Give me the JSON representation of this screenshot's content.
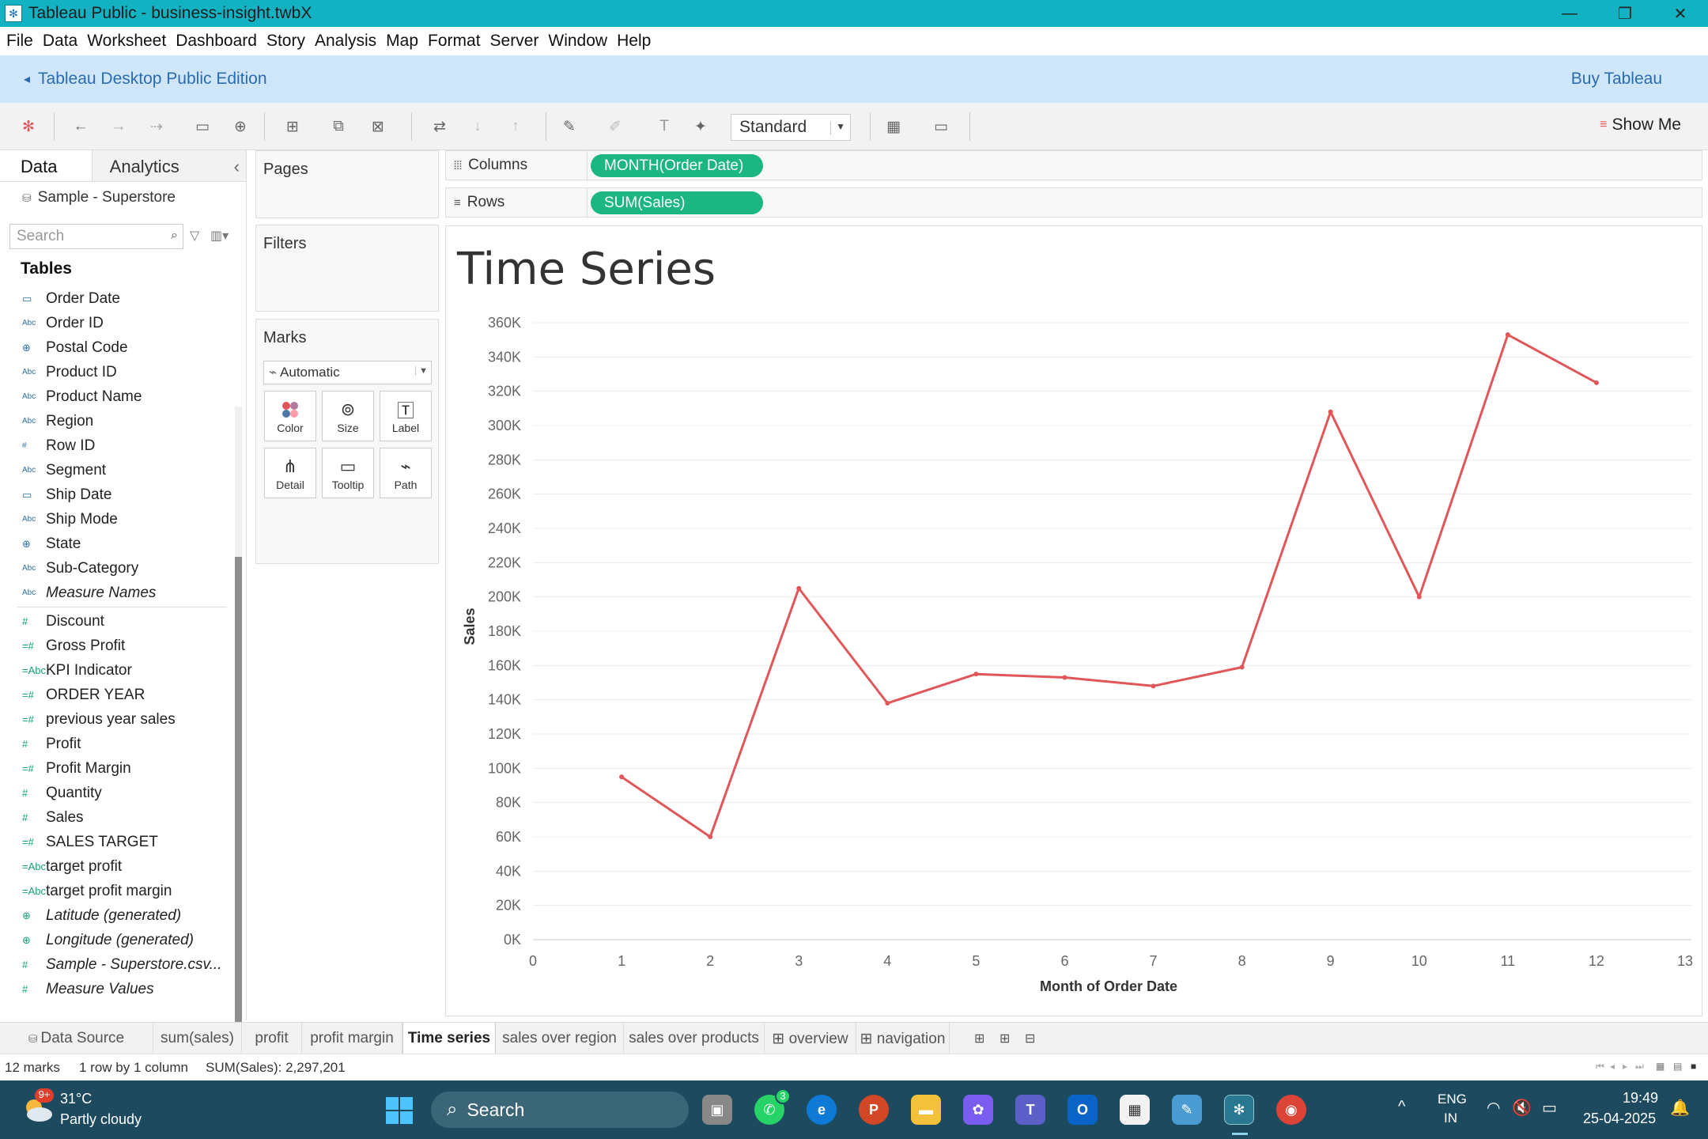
{
  "window": {
    "title": "Tableau Public - business-insight.twbX"
  },
  "menu": [
    "File",
    "Data",
    "Worksheet",
    "Dashboard",
    "Story",
    "Analysis",
    "Map",
    "Format",
    "Server",
    "Window",
    "Help"
  ],
  "banner": {
    "edition": "Tableau Desktop Public Edition",
    "buy": "Buy Tableau"
  },
  "toolbar": {
    "fit_select": "Standard",
    "show_me": "Show Me"
  },
  "datapane": {
    "tab_data": "Data",
    "tab_analytics": "Analytics",
    "datasource": "Sample - Superstore",
    "search_placeholder": "Search",
    "tables_heading": "Tables",
    "dimensions": [
      {
        "type": "date",
        "name": "Order Date"
      },
      {
        "type": "Abc",
        "name": "Order ID"
      },
      {
        "type": "geo",
        "name": "Postal Code"
      },
      {
        "type": "Abc",
        "name": "Product ID"
      },
      {
        "type": "Abc",
        "name": "Product Name"
      },
      {
        "type": "Abc",
        "name": "Region"
      },
      {
        "type": "#",
        "name": "Row ID"
      },
      {
        "type": "Abc",
        "name": "Segment"
      },
      {
        "type": "date",
        "name": "Ship Date"
      },
      {
        "type": "Abc",
        "name": "Ship Mode"
      },
      {
        "type": "geo",
        "name": "State"
      },
      {
        "type": "Abc",
        "name": "Sub-Category"
      },
      {
        "type": "Abc",
        "name": "Measure Names",
        "italic": true
      }
    ],
    "measures": [
      {
        "type": "#",
        "name": "Discount"
      },
      {
        "type": "=#",
        "name": "Gross Profit"
      },
      {
        "type": "=Abc",
        "name": "KPI Indicator"
      },
      {
        "type": "=#",
        "name": "ORDER YEAR"
      },
      {
        "type": "=#",
        "name": "previous year sales"
      },
      {
        "type": "#",
        "name": "Profit"
      },
      {
        "type": "=#",
        "name": "Profit Margin"
      },
      {
        "type": "#",
        "name": "Quantity"
      },
      {
        "type": "#",
        "name": "Sales"
      },
      {
        "type": "=#",
        "name": "SALES TARGET"
      },
      {
        "type": "=Abc",
        "name": "target profit"
      },
      {
        "type": "=Abc",
        "name": "target profit margin"
      },
      {
        "type": "geo",
        "name": "Latitude (generated)",
        "italic": true
      },
      {
        "type": "geo",
        "name": "Longitude (generated)",
        "italic": true
      },
      {
        "type": "#",
        "name": "Sample - Superstore.csv...",
        "italic": true
      },
      {
        "type": "#",
        "name": "Measure Values",
        "italic": true
      }
    ]
  },
  "cards": {
    "pages": "Pages",
    "filters": "Filters",
    "marks": "Marks",
    "mark_type": "Automatic",
    "mark_buttons": [
      "Color",
      "Size",
      "Label",
      "Detail",
      "Tooltip",
      "Path"
    ]
  },
  "shelves": {
    "columns_label": "Columns",
    "columns_pill": "MONTH(Order Date)",
    "rows_label": "Rows",
    "rows_pill": "SUM(Sales)"
  },
  "chart_data": {
    "type": "line",
    "title": "Time Series",
    "xlabel": "Month of Order Date",
    "ylabel": "Sales",
    "x": [
      1,
      2,
      3,
      4,
      5,
      6,
      7,
      8,
      9,
      10,
      11,
      12
    ],
    "values": [
      95000,
      60000,
      205000,
      138000,
      155000,
      153000,
      148000,
      159000,
      308000,
      200000,
      353000,
      325000
    ],
    "xlim": [
      0,
      13
    ],
    "ylim": [
      0,
      360000
    ],
    "x_ticks": [
      "0",
      "1",
      "2",
      "3",
      "4",
      "5",
      "6",
      "7",
      "8",
      "9",
      "10",
      "11",
      "12",
      "13"
    ],
    "y_ticks": [
      "0K",
      "20K",
      "40K",
      "60K",
      "80K",
      "100K",
      "120K",
      "140K",
      "160K",
      "180K",
      "200K",
      "220K",
      "240K",
      "260K",
      "280K",
      "300K",
      "320K",
      "340K",
      "360K"
    ],
    "line_color": "#e15759",
    "grid": true
  },
  "sheets": {
    "data_source": "Data Source",
    "tabs": [
      "sum(sales)",
      "profit",
      "profit margin",
      "Time series",
      "sales over region",
      "sales over products",
      "overview",
      "navigation"
    ],
    "active": "Time series"
  },
  "status": {
    "marks": "12 marks",
    "dims": "1 row by 1 column",
    "sum": "SUM(Sales): 2,297,201"
  },
  "taskbar": {
    "weather_temp": "31°C",
    "weather_desc": "Partly cloudy",
    "weather_badge": "9+",
    "search": "Search",
    "whatsapp_badge": "3",
    "lang": "ENG",
    "region": "IN",
    "time": "19:49",
    "date": "25-04-2025"
  }
}
